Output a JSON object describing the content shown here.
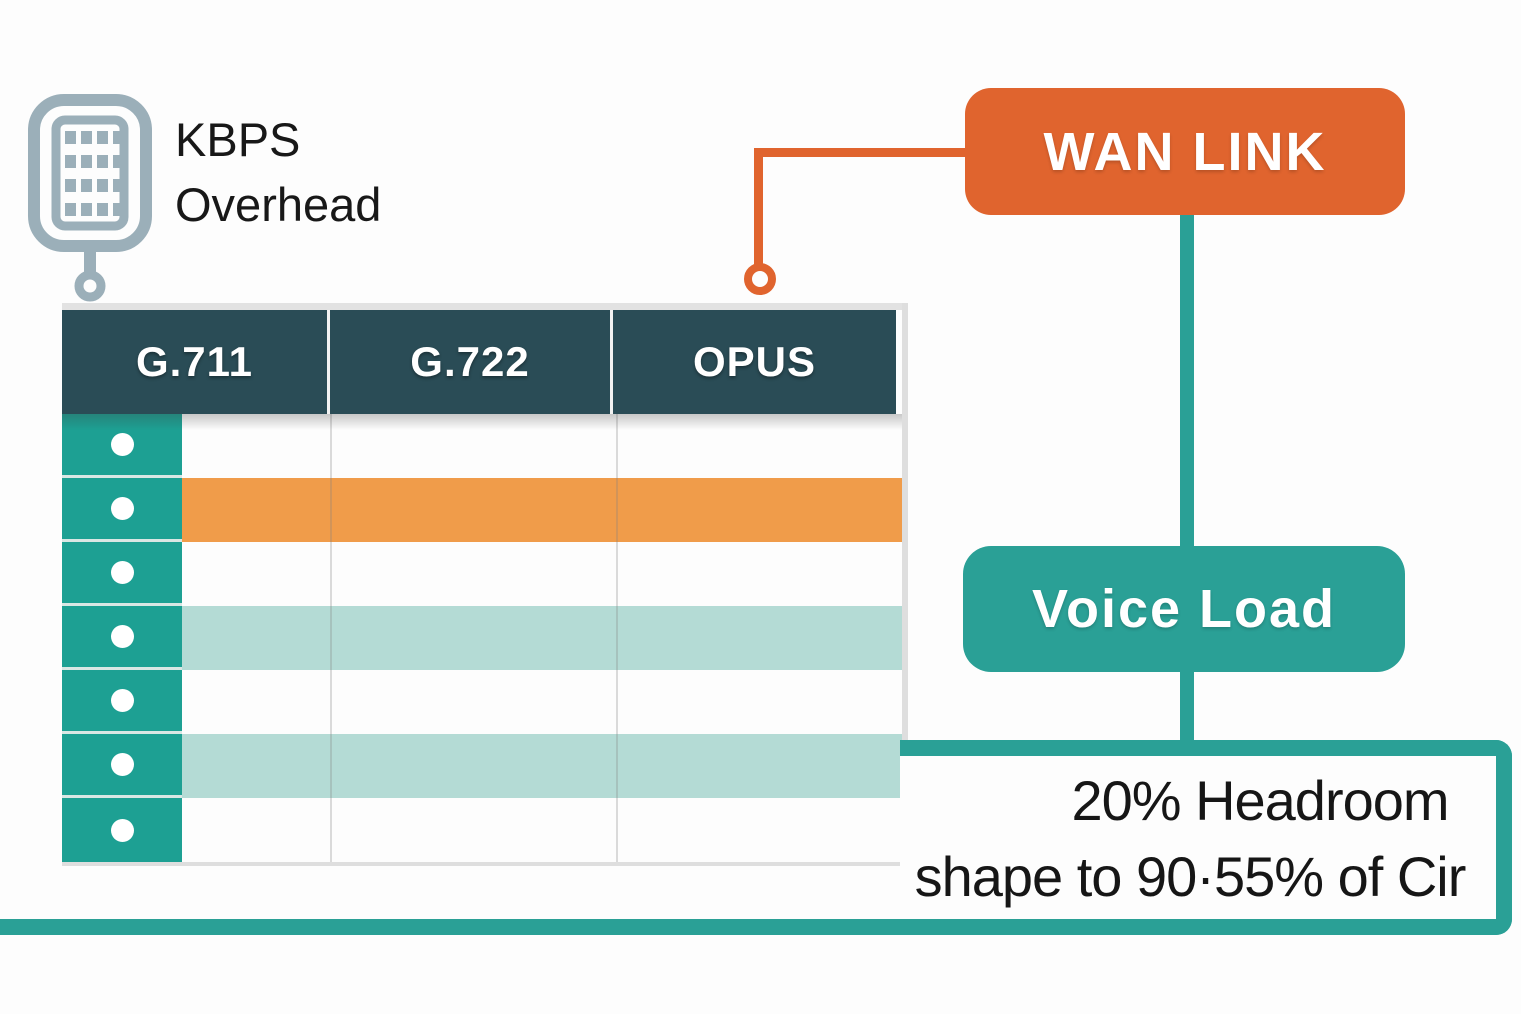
{
  "page": {
    "background": "#fdfdfd"
  },
  "legend": {
    "icon": "phone-keypad-icon",
    "line1": "KBPS",
    "line2": "Overhead"
  },
  "codec_table": {
    "columns": [
      "G.711",
      "G.722",
      "OPUS"
    ],
    "rows": [
      {
        "bullet": true,
        "highlight": "none"
      },
      {
        "bullet": true,
        "highlight": "orange"
      },
      {
        "bullet": true,
        "highlight": "none"
      },
      {
        "bullet": true,
        "highlight": "teal"
      },
      {
        "bullet": true,
        "highlight": "none"
      },
      {
        "bullet": true,
        "highlight": "teal"
      },
      {
        "bullet": true,
        "highlight": "none"
      }
    ]
  },
  "nodes": {
    "wan_link": {
      "label": "WAN LINK"
    },
    "voice_load": {
      "label": "Voice Load"
    }
  },
  "annotation": {
    "line1": "20% Headroom",
    "line2": "shape to 90·55% of Cir"
  },
  "colors": {
    "header_bg": "#2A4C56",
    "bullet_cell": "#1DA093",
    "row_none": "#fdfdfd",
    "row_orange": "#F09C4A",
    "row_teal": "#B4DBD5",
    "wan_link": "#E0642E",
    "voice_trunk": "#2AA096",
    "icon": "#9BAFB9"
  }
}
